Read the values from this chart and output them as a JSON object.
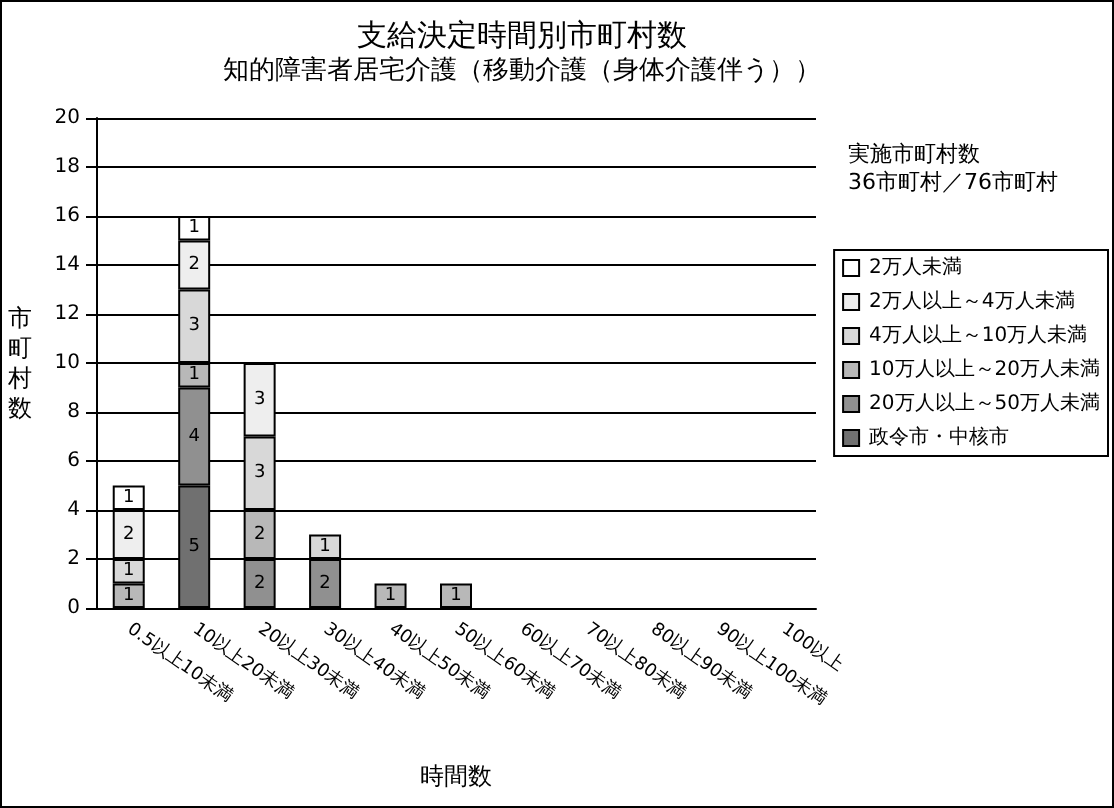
{
  "chart_data": {
    "type": "bar",
    "stacked": true,
    "title": "支給決定時間別市町村数",
    "subtitle": "知的障害者居宅介護（移動介護（身体介護伴う））",
    "xlabel": "時間数",
    "ylabel": "市町村数",
    "categories": [
      "0.5以上10未満",
      "10以上20未満",
      "20以上30未満",
      "30以上40未満",
      "40以上50未満",
      "50以上60未満",
      "60以上70未満",
      "70以上80未満",
      "80以上90未満",
      "90以上100未満",
      "100以上"
    ],
    "series": [
      {
        "name": "政令市・中核市",
        "color": "#707070",
        "values": [
          null,
          5,
          null,
          null,
          null,
          null,
          null,
          null,
          null,
          null,
          null
        ]
      },
      {
        "name": "20万人以上～50万人未満",
        "color": "#909090",
        "values": [
          null,
          4,
          2,
          2,
          null,
          null,
          null,
          null,
          null,
          null,
          null
        ]
      },
      {
        "name": "10万人以上～20万人未満",
        "color": "#b8b8b8",
        "values": [
          1,
          1,
          2,
          null,
          1,
          1,
          null,
          null,
          null,
          null,
          null
        ]
      },
      {
        "name": "4万人以上～10万人未満",
        "color": "#d8d8d8",
        "values": [
          1,
          3,
          3,
          1,
          null,
          null,
          null,
          null,
          null,
          null,
          null
        ]
      },
      {
        "name": "2万人以上～4万人未満",
        "color": "#eeeeee",
        "values": [
          2,
          2,
          3,
          null,
          null,
          null,
          null,
          null,
          null,
          null,
          null
        ]
      },
      {
        "name": "2万人未満",
        "color": "#ffffff",
        "values": [
          1,
          1,
          null,
          null,
          null,
          null,
          null,
          null,
          null,
          null,
          null
        ]
      }
    ],
    "ylim": [
      0,
      20
    ],
    "yticks": [
      0,
      2,
      4,
      6,
      8,
      10,
      12,
      14,
      16,
      18,
      20
    ],
    "grid": "y",
    "legend": "right",
    "data_labels": true,
    "annotations": [
      "実施市町村数\n36市町村／76市町村"
    ]
  }
}
